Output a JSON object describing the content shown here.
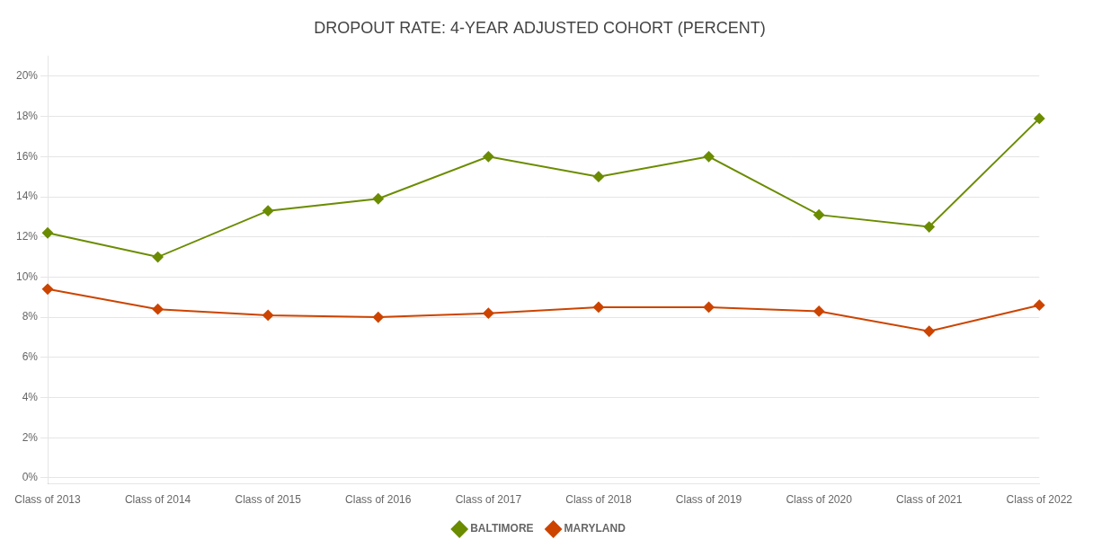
{
  "chart_data": {
    "type": "line",
    "title": "DROPOUT RATE: 4-YEAR ADJUSTED COHORT (PERCENT)",
    "categories": [
      "Class of 2013",
      "Class of 2014",
      "Class of 2015",
      "Class of 2016",
      "Class of 2017",
      "Class of 2018",
      "Class of 2019",
      "Class of 2020",
      "Class of 2021",
      "Class of 2022"
    ],
    "series": [
      {
        "name": "BALTIMORE",
        "color": "#6b8c00",
        "marker": "diamond",
        "values": [
          12.2,
          11.0,
          13.3,
          13.9,
          16.0,
          15.0,
          16.0,
          13.1,
          12.5,
          17.9
        ]
      },
      {
        "name": "MARYLAND",
        "color": "#cc4400",
        "marker": "diamond",
        "values": [
          9.4,
          8.4,
          8.1,
          8.0,
          8.2,
          8.5,
          8.5,
          8.3,
          7.3,
          8.6
        ]
      }
    ],
    "ylim": [
      -0.3,
      21
    ],
    "yticks": [
      {
        "value": 0,
        "label": "0%"
      },
      {
        "value": 2,
        "label": "2%"
      },
      {
        "value": 4,
        "label": "4%"
      },
      {
        "value": 6,
        "label": "6%"
      },
      {
        "value": 8,
        "label": "8%"
      },
      {
        "value": 10,
        "label": "10%"
      },
      {
        "value": 12,
        "label": "12%"
      },
      {
        "value": 14,
        "label": "14%"
      },
      {
        "value": 16,
        "label": "16%"
      },
      {
        "value": 18,
        "label": "18%"
      },
      {
        "value": 20,
        "label": "20%"
      }
    ],
    "grid": "y",
    "legend": "bottom"
  }
}
